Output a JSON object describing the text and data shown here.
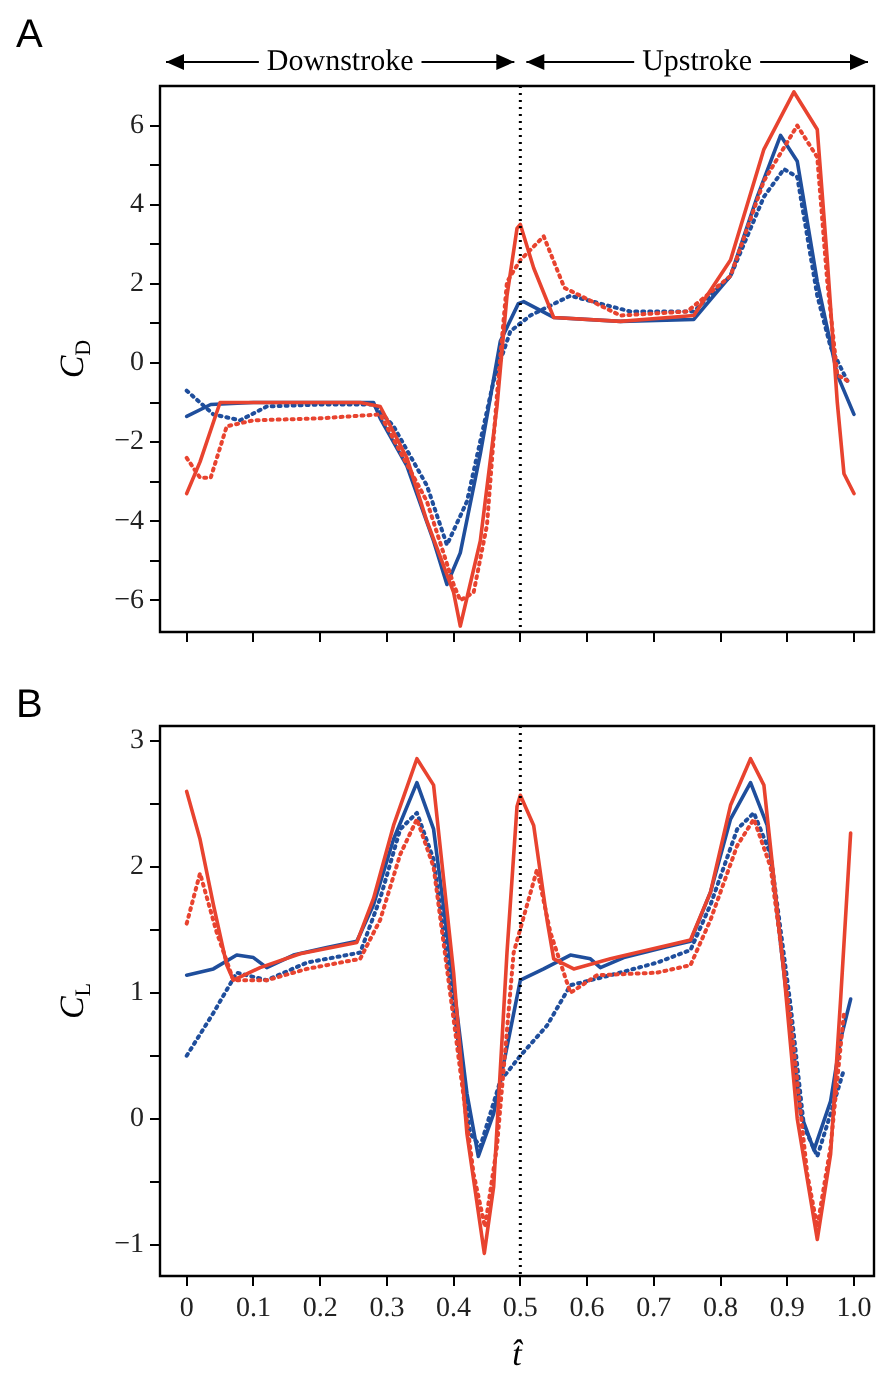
{
  "chart_data": [
    {
      "type": "line",
      "title": "A",
      "ylabel": "C$_{D}$",
      "annotations": [
        "Downstroke",
        "Upstroke"
      ],
      "xlim": [
        -0.04,
        1.03
      ],
      "xticks": [
        0,
        0.1,
        0.2,
        0.3,
        0.4,
        0.5,
        0.6,
        0.7,
        0.8,
        0.9,
        1
      ],
      "ylim": [
        -6.8,
        7
      ],
      "yticks": [
        {
          "value": -6,
          "label": "−6"
        },
        {
          "value": -5,
          "label": null
        },
        {
          "value": -4,
          "label": "−4"
        },
        {
          "value": -3,
          "label": null
        },
        {
          "value": -2,
          "label": "−2"
        },
        {
          "value": -1,
          "label": null
        },
        0,
        {
          "value": 1,
          "label": null
        },
        2,
        {
          "value": 3,
          "label": null
        },
        4,
        {
          "value": 5,
          "label": null
        },
        6
      ],
      "tick_labels": "y",
      "grid": false,
      "legend": false,
      "marker": "none",
      "ref_lines": [
        {
          "axis": "x",
          "value": 0.5,
          "color": "#000000",
          "line_style": "dotted"
        }
      ],
      "series": [
        {
          "color": "#e8432f",
          "line_style": "solid",
          "x": [
            0,
            0.02,
            0.05,
            0.1,
            0.2,
            0.26,
            0.29,
            0.33,
            0.36,
            0.4,
            0.41,
            0.44,
            0.465,
            0.48,
            0.495,
            0.5,
            0.52,
            0.55,
            0.65,
            0.76,
            0.815,
            0.865,
            0.91,
            0.945,
            0.96,
            0.975,
            0.985,
            1.0
          ],
          "values": [
            -3.3,
            -2.5,
            -1.0,
            -1.0,
            -1.0,
            -1.0,
            -1.1,
            -2.4,
            -4.0,
            -5.8,
            -6.65,
            -4.5,
            -1.1,
            1.7,
            3.4,
            3.5,
            2.4,
            1.15,
            1.05,
            1.2,
            2.6,
            5.4,
            6.85,
            5.9,
            2.6,
            -1.0,
            -2.8,
            -3.3
          ]
        },
        {
          "color": "#e8432f",
          "line_style": "dotted",
          "x": [
            0,
            0.02,
            0.036,
            0.06,
            0.1,
            0.2,
            0.29,
            0.36,
            0.4,
            0.41,
            0.43,
            0.45,
            0.465,
            0.48,
            0.5,
            0.535,
            0.566,
            0.65,
            0.75,
            0.815,
            0.865,
            0.915,
            0.945,
            0.96,
            0.975,
            0.99
          ],
          "values": [
            -2.4,
            -2.9,
            -2.9,
            -1.6,
            -1.45,
            -1.4,
            -1.3,
            -3.5,
            -5.6,
            -6.0,
            -5.8,
            -4.1,
            -0.8,
            2.05,
            2.6,
            3.2,
            1.9,
            1.2,
            1.3,
            2.2,
            4.6,
            6.0,
            5.2,
            2.05,
            -0.3,
            -0.45
          ]
        },
        {
          "color": "#1f4e9c",
          "line_style": "solid",
          "x": [
            0,
            0.036,
            0.1,
            0.2,
            0.28,
            0.29,
            0.33,
            0.37,
            0.39,
            0.41,
            0.44,
            0.47,
            0.497,
            0.505,
            0.55,
            0.65,
            0.76,
            0.815,
            0.855,
            0.89,
            0.915,
            0.945,
            0.975,
            1.0
          ],
          "values": [
            -1.35,
            -1.05,
            -1.0,
            -1.0,
            -1.0,
            -1.4,
            -2.6,
            -4.5,
            -5.6,
            -4.8,
            -2.3,
            0.55,
            1.5,
            1.55,
            1.15,
            1.05,
            1.1,
            2.2,
            4.2,
            5.75,
            5.1,
            2.05,
            -0.3,
            -1.3
          ]
        },
        {
          "color": "#1f4e9c",
          "line_style": "dotted",
          "x": [
            0,
            0.04,
            0.08,
            0.12,
            0.2,
            0.28,
            0.31,
            0.36,
            0.39,
            0.42,
            0.46,
            0.485,
            0.515,
            0.575,
            0.665,
            0.76,
            0.815,
            0.865,
            0.895,
            0.915,
            0.945,
            0.965,
            0.99
          ],
          "values": [
            -0.7,
            -1.3,
            -1.45,
            -1.1,
            -1.05,
            -1.05,
            -1.6,
            -3.1,
            -4.6,
            -3.5,
            -0.45,
            0.8,
            1.2,
            1.7,
            1.3,
            1.3,
            2.2,
            4.2,
            4.9,
            4.7,
            1.7,
            0.4,
            -0.45
          ]
        }
      ]
    },
    {
      "type": "line",
      "title": "B",
      "xlabel": "t̂",
      "ylabel": "C$_{L}$",
      "xlim": [
        -0.04,
        1.03
      ],
      "xticks": [
        0,
        0.1,
        0.2,
        0.3,
        0.4,
        0.5,
        0.6,
        0.7,
        0.8,
        0.9,
        {
          "value": 1,
          "label": "1.0"
        }
      ],
      "ylim": [
        -1.25,
        3.12
      ],
      "yticks": [
        {
          "value": -1,
          "label": "−1"
        },
        {
          "value": -0.5,
          "label": null
        },
        0,
        {
          "value": 0.5,
          "label": null
        },
        1,
        {
          "value": 1.5,
          "label": null
        },
        2,
        {
          "value": 2.5,
          "label": null
        },
        3
      ],
      "grid": false,
      "legend": false,
      "marker": "none",
      "ref_lines": [
        {
          "axis": "x",
          "value": 0.5,
          "color": "#000000",
          "line_style": "dotted"
        }
      ],
      "series": [
        {
          "color": "#e8432f",
          "line_style": "solid",
          "x": [
            0,
            0.02,
            0.04,
            0.06,
            0.07,
            0.11,
            0.17,
            0.255,
            0.28,
            0.31,
            0.345,
            0.37,
            0.4,
            0.42,
            0.446,
            0.46,
            0.48,
            0.495,
            0.5,
            0.52,
            0.54,
            0.55,
            0.58,
            0.635,
            0.755,
            0.785,
            0.815,
            0.845,
            0.865,
            0.895,
            0.915,
            0.945,
            0.965,
            0.98,
            0.995
          ],
          "values": [
            2.6,
            2.22,
            1.7,
            1.22,
            1.1,
            1.2,
            1.31,
            1.4,
            1.75,
            2.33,
            2.86,
            2.65,
            1.16,
            -0.12,
            -1.07,
            -0.54,
            1.32,
            2.48,
            2.57,
            2.33,
            1.58,
            1.27,
            1.19,
            1.27,
            1.42,
            1.8,
            2.49,
            2.86,
            2.65,
            1.16,
            0,
            -0.96,
            -0.28,
            0.95,
            2.27
          ]
        },
        {
          "color": "#e8432f",
          "line_style": "dotted",
          "x": [
            0,
            0.02,
            0.045,
            0.07,
            0.12,
            0.18,
            0.26,
            0.29,
            0.32,
            0.345,
            0.37,
            0.4,
            0.43,
            0.447,
            0.465,
            0.49,
            0.525,
            0.545,
            0.575,
            0.615,
            0.705,
            0.755,
            0.785,
            0.825,
            0.85,
            0.875,
            0.905,
            0.93,
            0.945,
            0.965,
            0.985
          ],
          "values": [
            1.55,
            1.95,
            1.48,
            1.1,
            1.1,
            1.19,
            1.27,
            1.58,
            2.1,
            2.38,
            2.0,
            0.79,
            -0.44,
            -0.86,
            -0.22,
            1.32,
            1.98,
            1.48,
            1.0,
            1.14,
            1.16,
            1.22,
            1.58,
            2.17,
            2.38,
            2.0,
            0.79,
            -0.44,
            -0.86,
            -0.22,
            0.84
          ]
        },
        {
          "color": "#1f4e9c",
          "line_style": "solid",
          "x": [
            0,
            0.04,
            0.075,
            0.1,
            0.12,
            0.16,
            0.21,
            0.255,
            0.28,
            0.31,
            0.345,
            0.37,
            0.4,
            0.42,
            0.437,
            0.46,
            0.48,
            0.5,
            0.535,
            0.575,
            0.605,
            0.62,
            0.655,
            0.715,
            0.755,
            0.785,
            0.815,
            0.845,
            0.87,
            0.895,
            0.92,
            0.94,
            0.965,
            0.98,
            0.995
          ],
          "values": [
            1.14,
            1.19,
            1.3,
            1.28,
            1.2,
            1.3,
            1.36,
            1.41,
            1.7,
            2.22,
            2.67,
            2.3,
            1.06,
            0.2,
            -0.3,
            0.04,
            0.57,
            1.1,
            1.19,
            1.3,
            1.27,
            1.2,
            1.28,
            1.36,
            1.41,
            1.8,
            2.38,
            2.67,
            2.33,
            1.16,
            0.04,
            -0.25,
            0.14,
            0.63,
            0.95
          ]
        },
        {
          "color": "#1f4e9c",
          "line_style": "dotted",
          "x": [
            0,
            0.04,
            0.075,
            0.12,
            0.18,
            0.26,
            0.29,
            0.32,
            0.345,
            0.37,
            0.4,
            0.425,
            0.44,
            0.47,
            0.5,
            0.54,
            0.575,
            0.635,
            0.705,
            0.755,
            0.785,
            0.825,
            0.85,
            0.875,
            0.905,
            0.925,
            0.945,
            0.965,
            0.985
          ],
          "values": [
            0.5,
            0.84,
            1.16,
            1.1,
            1.24,
            1.32,
            1.75,
            2.3,
            2.43,
            2.06,
            0.9,
            -0.12,
            -0.22,
            0.3,
            0.5,
            0.74,
            1.06,
            1.14,
            1.24,
            1.34,
            1.7,
            2.3,
            2.43,
            2.1,
            0.9,
            -0.06,
            -0.3,
            0.04,
            0.39
          ]
        }
      ]
    }
  ]
}
